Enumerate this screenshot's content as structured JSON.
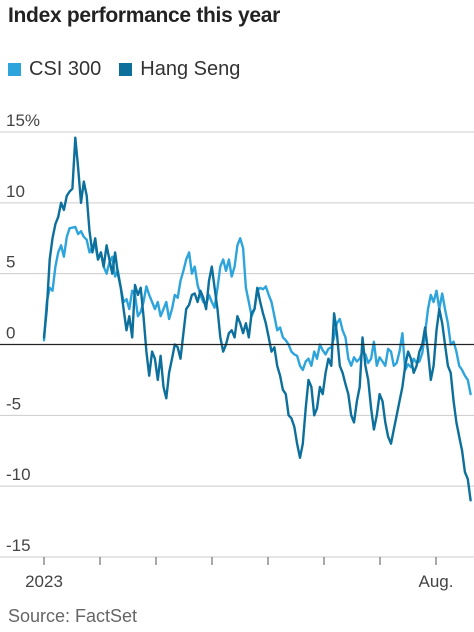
{
  "title": "Index performance this year",
  "source": "Source: FactSet",
  "colors": {
    "csi300": "#2ea4dc",
    "hangseng": "#0d6f9b",
    "zero_line": "#222222",
    "grid": "#cccccc"
  },
  "chart_data": {
    "type": "line",
    "title": "Index performance this year",
    "xlabel": "",
    "ylabel": "",
    "ylim": [
      -15,
      15
    ],
    "y_ticks": [
      {
        "value": 15,
        "label": "15%"
      },
      {
        "value": 10,
        "label": "10"
      },
      {
        "value": 5,
        "label": "5"
      },
      {
        "value": 0,
        "label": "0"
      },
      {
        "value": -5,
        "label": "-5"
      },
      {
        "value": -10,
        "label": "-10"
      },
      {
        "value": -15,
        "label": "-15"
      }
    ],
    "x_ticks": [
      {
        "value": 0,
        "label": "2023"
      },
      {
        "value": 1,
        "label": ""
      },
      {
        "value": 2,
        "label": ""
      },
      {
        "value": 3,
        "label": ""
      },
      {
        "value": 4,
        "label": ""
      },
      {
        "value": 5,
        "label": ""
      },
      {
        "value": 6,
        "label": ""
      },
      {
        "value": 7,
        "label": "Aug."
      }
    ],
    "xlim": [
      0,
      7.7
    ],
    "legend": "top-left",
    "grid": true,
    "series": [
      {
        "name": "CSI 300",
        "color": "#2ea4dc",
        "points": [
          [
            0.0,
            0.3
          ],
          [
            0.05,
            3.0
          ],
          [
            0.1,
            4.0
          ],
          [
            0.15,
            3.8
          ],
          [
            0.2,
            5.5
          ],
          [
            0.25,
            6.5
          ],
          [
            0.3,
            7.0
          ],
          [
            0.35,
            6.2
          ],
          [
            0.4,
            7.6
          ],
          [
            0.45,
            8.2
          ],
          [
            0.55,
            8.3
          ],
          [
            0.6,
            7.8
          ],
          [
            0.65,
            8.0
          ],
          [
            0.7,
            7.6
          ],
          [
            0.75,
            7.4
          ],
          [
            0.8,
            6.5
          ],
          [
            0.85,
            6.9
          ],
          [
            0.9,
            7.0
          ],
          [
            0.95,
            6.0
          ],
          [
            1.0,
            6.5
          ],
          [
            1.05,
            5.5
          ],
          [
            1.1,
            5.0
          ],
          [
            1.15,
            5.8
          ],
          [
            1.2,
            6.2
          ],
          [
            1.25,
            4.8
          ],
          [
            1.3,
            5.2
          ],
          [
            1.35,
            4.0
          ],
          [
            1.4,
            3.0
          ],
          [
            1.45,
            3.2
          ],
          [
            1.5,
            2.5
          ],
          [
            1.55,
            3.8
          ],
          [
            1.6,
            3.5
          ],
          [
            1.65,
            2.0
          ],
          [
            1.7,
            2.3
          ],
          [
            1.75,
            3.0
          ],
          [
            1.8,
            4.1
          ],
          [
            1.85,
            3.5
          ],
          [
            1.9,
            3.0
          ],
          [
            1.95,
            2.5
          ],
          [
            2.0,
            3.0
          ],
          [
            2.05,
            2.0
          ],
          [
            2.1,
            2.5
          ],
          [
            2.15,
            3.0
          ],
          [
            2.2,
            1.8
          ],
          [
            2.25,
            2.5
          ],
          [
            2.3,
            3.5
          ],
          [
            2.35,
            3.3
          ],
          [
            2.4,
            4.5
          ],
          [
            2.45,
            5.2
          ],
          [
            2.5,
            6.0
          ],
          [
            2.55,
            6.5
          ],
          [
            2.6,
            5.0
          ],
          [
            2.65,
            5.5
          ],
          [
            2.7,
            4.2
          ],
          [
            2.75,
            3.5
          ],
          [
            2.8,
            3.0
          ],
          [
            2.85,
            2.8
          ],
          [
            2.9,
            3.5
          ],
          [
            2.95,
            3.0
          ],
          [
            3.0,
            2.6
          ],
          [
            3.05,
            4.0
          ],
          [
            3.1,
            5.5
          ],
          [
            3.15,
            6.0
          ],
          [
            3.2,
            5.2
          ],
          [
            3.25,
            6.0
          ],
          [
            3.3,
            4.8
          ],
          [
            3.35,
            5.5
          ],
          [
            3.4,
            7.0
          ],
          [
            3.45,
            7.5
          ],
          [
            3.5,
            6.8
          ],
          [
            3.55,
            4.0
          ],
          [
            3.6,
            3.0
          ],
          [
            3.65,
            2.0
          ],
          [
            3.7,
            2.5
          ],
          [
            3.75,
            3.8
          ],
          [
            3.8,
            4.0
          ],
          [
            3.85,
            3.9
          ],
          [
            3.9,
            4.1
          ],
          [
            3.95,
            3.5
          ],
          [
            4.0,
            3.0
          ],
          [
            4.05,
            2.0
          ],
          [
            4.1,
            1.0
          ],
          [
            4.15,
            1.2
          ],
          [
            4.2,
            0.5
          ],
          [
            4.25,
            0.3
          ],
          [
            4.3,
            0.0
          ],
          [
            4.35,
            -0.5
          ],
          [
            4.4,
            -0.7
          ],
          [
            4.45,
            -0.8
          ],
          [
            4.5,
            -1.5
          ],
          [
            4.55,
            -1.8
          ],
          [
            4.6,
            -1.2
          ],
          [
            4.65,
            -1.0
          ],
          [
            4.7,
            -1.5
          ],
          [
            4.75,
            -0.5
          ],
          [
            4.8,
            -1.0
          ],
          [
            4.85,
            0.0
          ],
          [
            4.9,
            -0.4
          ],
          [
            4.95,
            -0.7
          ],
          [
            5.0,
            -0.3
          ],
          [
            5.05,
            -0.2
          ],
          [
            5.1,
            0.5
          ],
          [
            5.15,
            1.5
          ],
          [
            5.2,
            1.8
          ],
          [
            5.25,
            1.0
          ],
          [
            5.3,
            0.5
          ],
          [
            5.35,
            -1.0
          ],
          [
            5.4,
            -1.5
          ],
          [
            5.45,
            -0.9
          ],
          [
            5.5,
            -1.2
          ],
          [
            5.55,
            -1.0
          ],
          [
            5.6,
            -0.5
          ],
          [
            5.65,
            -0.7
          ],
          [
            5.7,
            -1.3
          ],
          [
            5.75,
            -1.0
          ],
          [
            5.8,
            0.2
          ],
          [
            5.85,
            -1.5
          ],
          [
            5.9,
            -0.9
          ],
          [
            5.95,
            -1.2
          ],
          [
            6.0,
            -1.5
          ],
          [
            6.05,
            -0.3
          ],
          [
            6.1,
            -0.5
          ],
          [
            6.15,
            -1.5
          ],
          [
            6.2,
            -1.3
          ],
          [
            6.25,
            -0.5
          ],
          [
            6.3,
            0.8
          ],
          [
            6.35,
            -1.8
          ],
          [
            6.4,
            -1.4
          ],
          [
            6.45,
            -1.6
          ],
          [
            6.5,
            -1.0
          ],
          [
            6.55,
            -1.3
          ],
          [
            6.6,
            -1.2
          ],
          [
            6.65,
            -0.6
          ],
          [
            6.7,
            0.8
          ],
          [
            6.75,
            2.5
          ],
          [
            6.8,
            3.5
          ],
          [
            6.85,
            3.0
          ],
          [
            6.9,
            3.8
          ],
          [
            6.95,
            2.5
          ],
          [
            7.0,
            3.6
          ],
          [
            7.05,
            2.5
          ],
          [
            7.1,
            1.5
          ],
          [
            7.15,
            0.0
          ],
          [
            7.2,
            0.2
          ],
          [
            7.25,
            -0.5
          ],
          [
            7.3,
            -1.5
          ],
          [
            7.35,
            -1.8
          ],
          [
            7.4,
            -2.2
          ],
          [
            7.45,
            -2.5
          ],
          [
            7.5,
            -3.5
          ]
        ]
      },
      {
        "name": "Hang Seng",
        "color": "#0d6f9b",
        "points": [
          [
            0.0,
            0.5
          ],
          [
            0.05,
            2.5
          ],
          [
            0.1,
            6.0
          ],
          [
            0.15,
            7.5
          ],
          [
            0.2,
            8.5
          ],
          [
            0.25,
            9.0
          ],
          [
            0.3,
            10.0
          ],
          [
            0.35,
            9.5
          ],
          [
            0.4,
            10.5
          ],
          [
            0.45,
            10.8
          ],
          [
            0.5,
            11.0
          ],
          [
            0.55,
            14.6
          ],
          [
            0.6,
            12.5
          ],
          [
            0.65,
            10.0
          ],
          [
            0.7,
            11.5
          ],
          [
            0.75,
            10.5
          ],
          [
            0.8,
            8.0
          ],
          [
            0.85,
            6.5
          ],
          [
            0.9,
            7.5
          ],
          [
            0.95,
            6.0
          ],
          [
            1.0,
            6.5
          ],
          [
            1.05,
            5.5
          ],
          [
            1.1,
            7.0
          ],
          [
            1.15,
            6.0
          ],
          [
            1.2,
            5.0
          ],
          [
            1.25,
            6.5
          ],
          [
            1.3,
            5.0
          ],
          [
            1.35,
            4.0
          ],
          [
            1.4,
            2.5
          ],
          [
            1.45,
            1.0
          ],
          [
            1.5,
            2.0
          ],
          [
            1.55,
            0.5
          ],
          [
            1.6,
            4.2
          ],
          [
            1.65,
            3.5
          ],
          [
            1.7,
            4.0
          ],
          [
            1.75,
            2.0
          ],
          [
            1.8,
            -0.5
          ],
          [
            1.85,
            -2.2
          ],
          [
            1.9,
            -0.5
          ],
          [
            1.95,
            -1.0
          ],
          [
            2.0,
            -2.5
          ],
          [
            2.05,
            -0.8
          ],
          [
            2.1,
            -3.0
          ],
          [
            2.15,
            -3.8
          ],
          [
            2.2,
            -2.0
          ],
          [
            2.25,
            -1.0
          ],
          [
            2.3,
            0.0
          ],
          [
            2.35,
            -0.2
          ],
          [
            2.4,
            -1.0
          ],
          [
            2.45,
            0.8
          ],
          [
            2.5,
            2.5
          ],
          [
            2.55,
            2.8
          ],
          [
            2.6,
            3.5
          ],
          [
            2.65,
            3.6
          ],
          [
            2.7,
            3.0
          ],
          [
            2.75,
            3.8
          ],
          [
            2.8,
            3.3
          ],
          [
            2.85,
            2.5
          ],
          [
            2.9,
            4.5
          ],
          [
            2.95,
            5.5
          ],
          [
            3.0,
            4.0
          ],
          [
            3.05,
            2.5
          ],
          [
            3.1,
            0.5
          ],
          [
            3.15,
            -0.5
          ],
          [
            3.2,
            0.0
          ],
          [
            3.25,
            0.8
          ],
          [
            3.3,
            1.0
          ],
          [
            3.35,
            0.5
          ],
          [
            3.4,
            2.0
          ],
          [
            3.45,
            1.5
          ],
          [
            3.5,
            0.8
          ],
          [
            3.55,
            1.5
          ],
          [
            3.6,
            0.5
          ],
          [
            3.65,
            2.2
          ],
          [
            3.7,
            2.5
          ],
          [
            3.75,
            4.0
          ],
          [
            3.8,
            3.0
          ],
          [
            3.85,
            2.2
          ],
          [
            3.9,
            1.5
          ],
          [
            3.95,
            0.5
          ],
          [
            4.0,
            -0.5
          ],
          [
            4.05,
            -0.2
          ],
          [
            4.1,
            -1.5
          ],
          [
            4.15,
            -2.2
          ],
          [
            4.2,
            -3.2
          ],
          [
            4.25,
            -3.5
          ],
          [
            4.3,
            -5.0
          ],
          [
            4.35,
            -5.2
          ],
          [
            4.4,
            -5.8
          ],
          [
            4.45,
            -7.0
          ],
          [
            4.5,
            -8.0
          ],
          [
            4.55,
            -7.0
          ],
          [
            4.6,
            -4.5
          ],
          [
            4.65,
            -2.5
          ],
          [
            4.7,
            -3.0
          ],
          [
            4.75,
            -5.0
          ],
          [
            4.8,
            -4.5
          ],
          [
            4.85,
            -3.0
          ],
          [
            4.9,
            -3.5
          ],
          [
            4.95,
            -2.0
          ],
          [
            5.0,
            -1.0
          ],
          [
            5.05,
            -1.5
          ],
          [
            5.1,
            2.2
          ],
          [
            5.15,
            0.8
          ],
          [
            5.2,
            -1.5
          ],
          [
            5.25,
            -2.0
          ],
          [
            5.3,
            -2.8
          ],
          [
            5.35,
            -3.5
          ],
          [
            5.4,
            -5.0
          ],
          [
            5.45,
            -5.5
          ],
          [
            5.5,
            -4.0
          ],
          [
            5.55,
            -3.0
          ],
          [
            5.6,
            0.5
          ],
          [
            5.65,
            -1.5
          ],
          [
            5.7,
            -2.5
          ],
          [
            5.75,
            -4.5
          ],
          [
            5.8,
            -6.0
          ],
          [
            5.85,
            -5.0
          ],
          [
            5.9,
            -3.5
          ],
          [
            5.95,
            -4.0
          ],
          [
            6.0,
            -5.5
          ],
          [
            6.05,
            -6.5
          ],
          [
            6.1,
            -7.0
          ],
          [
            6.15,
            -6.0
          ],
          [
            6.2,
            -5.0
          ],
          [
            6.25,
            -4.0
          ],
          [
            6.3,
            -3.0
          ],
          [
            6.35,
            -1.5
          ],
          [
            6.4,
            -0.5
          ],
          [
            6.45,
            -1.0
          ],
          [
            6.5,
            -2.0
          ],
          [
            6.55,
            -1.5
          ],
          [
            6.6,
            -0.5
          ],
          [
            6.65,
            0.0
          ],
          [
            6.7,
            1.2
          ],
          [
            6.75,
            -0.5
          ],
          [
            6.8,
            -2.5
          ],
          [
            6.85,
            -1.5
          ],
          [
            6.9,
            1.0
          ],
          [
            6.95,
            2.5
          ],
          [
            7.0,
            1.5
          ],
          [
            7.05,
            0.0
          ],
          [
            7.1,
            -1.5
          ],
          [
            7.15,
            -2.0
          ],
          [
            7.2,
            -4.0
          ],
          [
            7.25,
            -5.5
          ],
          [
            7.3,
            -6.5
          ],
          [
            7.35,
            -7.5
          ],
          [
            7.4,
            -9.0
          ],
          [
            7.45,
            -9.5
          ],
          [
            7.5,
            -11.0
          ]
        ]
      }
    ]
  }
}
